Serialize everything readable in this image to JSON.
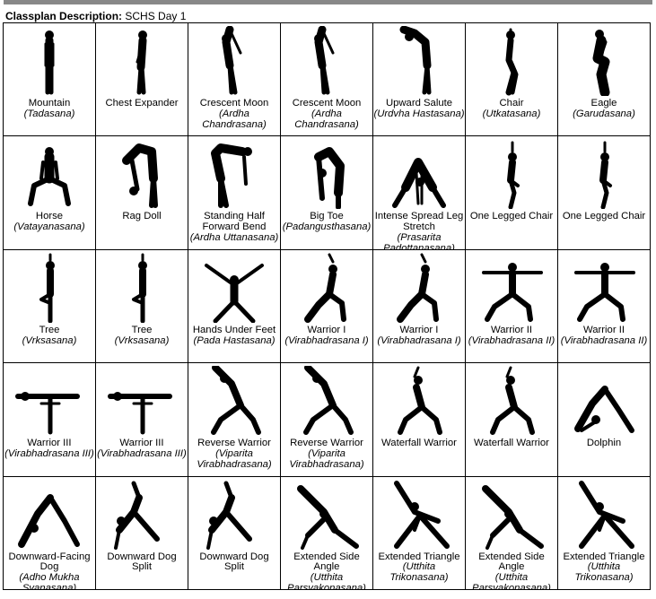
{
  "header": {
    "label": "Classplan Description:",
    "value": "SCHS Day 1"
  },
  "rows": [
    [
      {
        "name": "Mountain",
        "sanskrit": "(Tadasana)",
        "icon": "mountain-pose"
      },
      {
        "name": "Chest Expander",
        "sanskrit": "",
        "icon": "chest-expander-pose"
      },
      {
        "name": "Crescent Moon",
        "sanskrit": "(Ardha Chandrasana)",
        "icon": "crescent-moon-pose"
      },
      {
        "name": "Crescent Moon",
        "sanskrit": "(Ardha Chandrasana)",
        "icon": "crescent-moon-pose"
      },
      {
        "name": "Upward Salute",
        "sanskrit": "(Urdvha Hastasana)",
        "icon": "upward-salute-pose"
      },
      {
        "name": "Chair",
        "sanskrit": "(Utkatasana)",
        "icon": "chair-pose"
      },
      {
        "name": "Eagle",
        "sanskrit": "(Garudasana)",
        "icon": "eagle-pose"
      }
    ],
    [
      {
        "name": "Horse",
        "sanskrit": "(Vatayanasana)",
        "icon": "horse-pose"
      },
      {
        "name": "Rag Doll",
        "sanskrit": "",
        "icon": "rag-doll-pose"
      },
      {
        "name": "Standing Half Forward Bend",
        "sanskrit": "(Ardha Uttanasana)",
        "icon": "half-forward-bend-pose"
      },
      {
        "name": "Big Toe",
        "sanskrit": "(Padangusthasana)",
        "icon": "big-toe-pose"
      },
      {
        "name": "Intense Spread Leg Stretch",
        "sanskrit": "(Prasarita Padottanasana)",
        "icon": "spread-leg-stretch-pose"
      },
      {
        "name": "One Legged Chair",
        "sanskrit": "",
        "icon": "one-legged-chair-pose"
      },
      {
        "name": "One Legged Chair",
        "sanskrit": "",
        "icon": "one-legged-chair-pose"
      }
    ],
    [
      {
        "name": "Tree",
        "sanskrit": "(Vrksasana)",
        "icon": "tree-pose"
      },
      {
        "name": "Tree",
        "sanskrit": "(Vrksasana)",
        "icon": "tree-pose"
      },
      {
        "name": "Hands Under Feet",
        "sanskrit": "(Pada Hastasana)",
        "icon": "hands-under-feet-pose"
      },
      {
        "name": "Warrior I",
        "sanskrit": "(Virabhadrasana I)",
        "icon": "warrior-one-pose"
      },
      {
        "name": "Warrior I",
        "sanskrit": "(Virabhadrasana I)",
        "icon": "warrior-one-pose"
      },
      {
        "name": "Warrior II",
        "sanskrit": "(Virabhadrasana II)",
        "icon": "warrior-two-pose"
      },
      {
        "name": "Warrior II",
        "sanskrit": "(Virabhadrasana II)",
        "icon": "warrior-two-pose"
      }
    ],
    [
      {
        "name": "Warrior III",
        "sanskrit": "(Virabhadrasana III)",
        "icon": "warrior-three-pose"
      },
      {
        "name": "Warrior III",
        "sanskrit": "(Virabhadrasana III)",
        "icon": "warrior-three-pose"
      },
      {
        "name": "Reverse Warrior",
        "sanskrit": "(Viparita Virabhadrasana)",
        "icon": "reverse-warrior-pose"
      },
      {
        "name": "Reverse Warrior",
        "sanskrit": "(Viparita Virabhadrasana)",
        "icon": "reverse-warrior-pose"
      },
      {
        "name": "Waterfall Warrior",
        "sanskrit": "",
        "icon": "waterfall-warrior-pose"
      },
      {
        "name": "Waterfall Warrior",
        "sanskrit": "",
        "icon": "waterfall-warrior-pose"
      },
      {
        "name": "Dolphin",
        "sanskrit": "",
        "icon": "dolphin-pose"
      }
    ],
    [
      {
        "name": "Downward-Facing Dog",
        "sanskrit": "(Adho Mukha Svanasana)",
        "icon": "downward-dog-pose"
      },
      {
        "name": "Downward Dog Split",
        "sanskrit": "",
        "icon": "downward-dog-split-pose"
      },
      {
        "name": "Downward Dog Split",
        "sanskrit": "",
        "icon": "downward-dog-split-pose"
      },
      {
        "name": "Extended Side Angle",
        "sanskrit": "(Utthita Parsvakonasana)",
        "icon": "extended-side-angle-pose"
      },
      {
        "name": "Extended Triangle",
        "sanskrit": "(Utthita Trikonasana)",
        "icon": "extended-triangle-pose"
      },
      {
        "name": "Extended Side Angle",
        "sanskrit": "(Utthita Parsvakonasana)",
        "icon": "extended-side-angle-pose"
      },
      {
        "name": "Extended Triangle",
        "sanskrit": "(Utthita Trikonasana)",
        "icon": "extended-triangle-pose"
      }
    ]
  ]
}
